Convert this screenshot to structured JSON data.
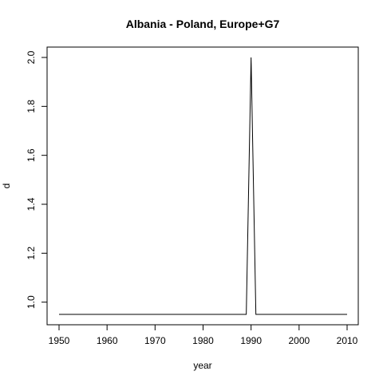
{
  "chart_data": {
    "type": "line",
    "title": "Albania - Poland, Europe+G7",
    "xlabel": "year",
    "ylabel": "d",
    "xlim": [
      1950,
      2010
    ],
    "ylim": [
      0.95,
      2.0
    ],
    "xticks": [
      1950,
      1960,
      1970,
      1980,
      1990,
      2000,
      2010
    ],
    "xtick_labels": [
      "1950",
      "1960",
      "1970",
      "1980",
      "1990",
      "2000",
      "2010"
    ],
    "yticks": [
      1.0,
      1.2,
      1.4,
      1.6,
      1.8,
      2.0
    ],
    "ytick_labels": [
      "1.0",
      "1.2",
      "1.4",
      "1.6",
      "1.8",
      "2.0"
    ],
    "grid": false,
    "series": [
      {
        "x": [
          1950,
          1989,
          1990,
          1991,
          2010
        ],
        "y": [
          0.95,
          0.95,
          2.0,
          0.95,
          0.95
        ],
        "color": "#000000"
      }
    ]
  }
}
